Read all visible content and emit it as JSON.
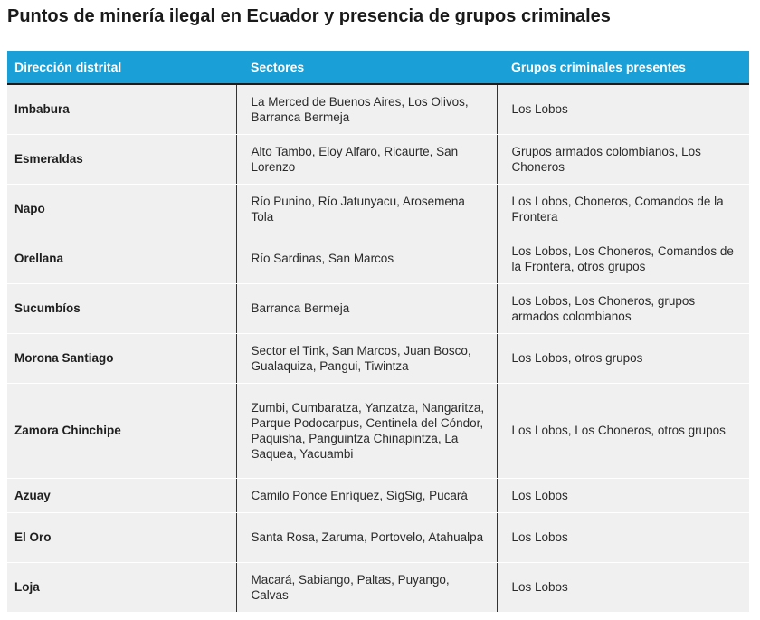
{
  "title": "Puntos de minería ilegal en Ecuador y presencia de grupos criminales",
  "headers": {
    "col1": "Dirección distrital",
    "col2": "Sectores",
    "col3": "Grupos criminales presentes"
  },
  "rows": [
    {
      "district": "Imbabura",
      "sectors": "La Merced de Buenos Aires, Los Olivos, Barranca Bermeja",
      "groups": "Los Lobos"
    },
    {
      "district": "Esmeraldas",
      "sectors": "Alto Tambo, Eloy Alfaro, Ricaurte, San Lorenzo",
      "groups": "Grupos armados colombianos, Los Choneros"
    },
    {
      "district": "Napo",
      "sectors": "Río Punino, Río Jatunyacu, Arosemena Tola",
      "groups": "Los Lobos, Choneros, Comandos de la Frontera"
    },
    {
      "district": "Orellana",
      "sectors": "Río Sardinas, San Marcos",
      "groups": "Los Lobos, Los Choneros, Comandos de la Frontera, otros grupos"
    },
    {
      "district": "Sucumbíos",
      "sectors": "Barranca Bermeja",
      "groups": "Los Lobos, Los Choneros, grupos armados colombianos"
    },
    {
      "district": "Morona Santiago",
      "sectors": "Sector el Tink, San Marcos, Juan Bosco, Gualaquiza, Pangui, Tiwintza",
      "groups": "Los Lobos, otros grupos"
    },
    {
      "district": "Zamora Chinchipe",
      "sectors": "Zumbi, Cumbaratza, Yanzatza, Nangaritza, Parque Podocarpus, Centinela del Cóndor, Paquisha, Panguintza Chinapintza, La Saquea, Yacuambi",
      "groups": "Los Lobos, Los Choneros, otros grupos"
    },
    {
      "district": "Azuay",
      "sectors": "Camilo Ponce Enríquez, SígSig, Pucará",
      "groups": "Los Lobos"
    },
    {
      "district": "El Oro",
      "sectors": "Santa Rosa, Zaruma, Portovelo, Atahualpa",
      "groups": "Los Lobos"
    },
    {
      "district": "Loja",
      "sectors": "Macará, Sabiango, Paltas, Puyango, Calvas",
      "groups": "Los Lobos"
    }
  ],
  "colors": {
    "header_bg": "#1a9fd6",
    "row_bg": "#f0f0f0"
  }
}
